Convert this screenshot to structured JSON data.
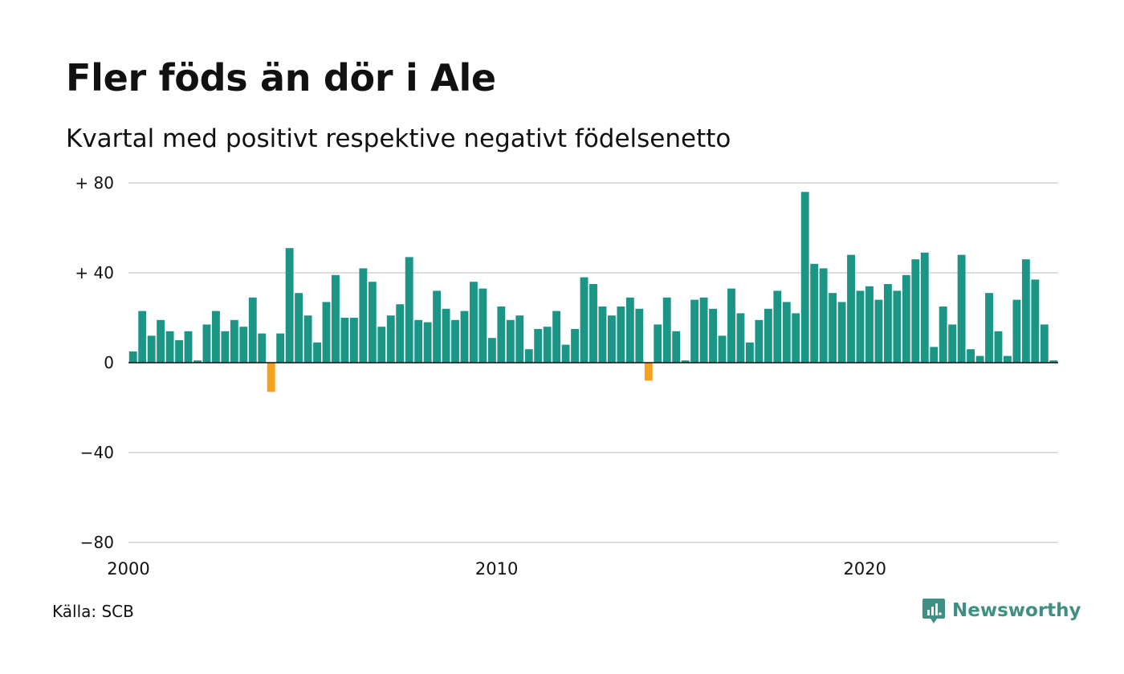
{
  "title": "Fler föds än dör i Ale",
  "subtitle": "Kvartal med positivt respektive negativt födelsenetto",
  "source": "Källa: SCB",
  "brand": {
    "name": "Newsworthy",
    "icon": "newsworthy-logo-icon"
  },
  "colors": {
    "positive": "#1b9586",
    "negative": "#f4a11d",
    "grid": "#dddddd",
    "brand": "#3f8f85"
  },
  "chart_data": {
    "type": "bar",
    "title": "Fler föds än dör i Ale",
    "subtitle": "Kvartal med positivt respektive negativt födelsenetto",
    "xlabel": "",
    "ylabel": "",
    "ylim": [
      -80,
      80
    ],
    "yticks": [
      {
        "value": 80,
        "label": "+ 80"
      },
      {
        "value": 40,
        "label": "+ 40"
      },
      {
        "value": 0,
        "label": "0"
      },
      {
        "value": -40,
        "label": "−40"
      },
      {
        "value": -80,
        "label": "−80"
      }
    ],
    "xticks": [
      {
        "value": 2000,
        "label": "2000"
      },
      {
        "value": 2010,
        "label": "2010"
      },
      {
        "value": 2020,
        "label": "2020"
      }
    ],
    "start_year": 2000,
    "start_quarter": 1,
    "grid": true,
    "legend": "none",
    "values": [
      5,
      23,
      12,
      19,
      14,
      10,
      14,
      1,
      17,
      23,
      14,
      19,
      16,
      29,
      13,
      -13,
      13,
      51,
      31,
      21,
      9,
      27,
      39,
      20,
      20,
      42,
      36,
      16,
      21,
      26,
      47,
      19,
      18,
      32,
      24,
      19,
      23,
      36,
      33,
      11,
      25,
      19,
      21,
      6,
      15,
      16,
      23,
      8,
      15,
      38,
      35,
      25,
      21,
      25,
      29,
      24,
      -8,
      17,
      29,
      14,
      1,
      28,
      29,
      24,
      12,
      33,
      22,
      9,
      19,
      24,
      32,
      27,
      22,
      76,
      44,
      42,
      31,
      27,
      48,
      32,
      34,
      28,
      35,
      32,
      39,
      46,
      49,
      7,
      25,
      17,
      48,
      6,
      3,
      31,
      14,
      3,
      28,
      46,
      37,
      17,
      1
    ]
  }
}
